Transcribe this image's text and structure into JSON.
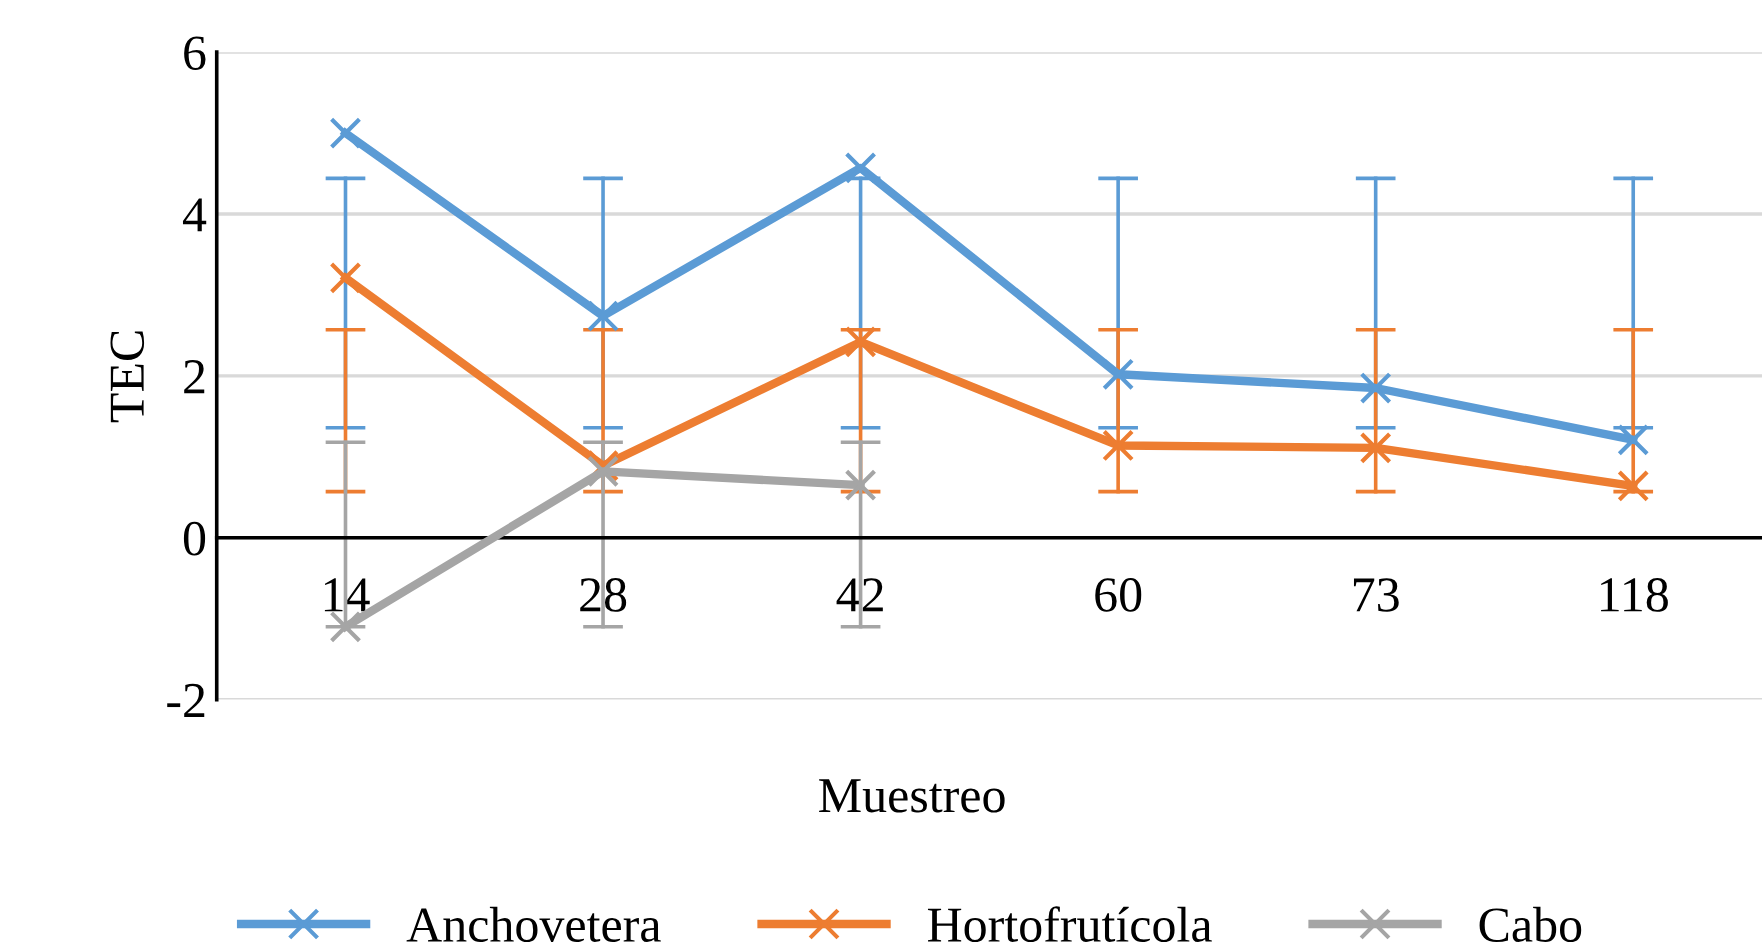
{
  "chart_data": {
    "type": "line",
    "xlabel": "Muestreo",
    "ylabel": "TEC",
    "categories": [
      "14",
      "28",
      "42",
      "60",
      "73",
      "118"
    ],
    "series": [
      {
        "name": "Anchovetera",
        "color": "#5b9bd5",
        "values": [
          5.0,
          2.74,
          4.57,
          2.02,
          1.85,
          1.21
        ],
        "errors": [
          [
            1.36,
            4.44
          ],
          [
            1.36,
            4.44
          ],
          [
            1.36,
            4.44
          ],
          [
            1.36,
            4.44
          ],
          [
            1.36,
            4.44
          ],
          [
            1.36,
            4.44
          ]
        ]
      },
      {
        "name": "Hortofrutícola",
        "color": "#ed7d31",
        "values": [
          3.21,
          0.89,
          2.42,
          1.14,
          1.11,
          0.64
        ],
        "errors": [
          [
            0.57,
            2.57
          ],
          [
            0.57,
            2.57
          ],
          [
            0.57,
            2.57
          ],
          [
            0.57,
            2.57
          ],
          [
            0.57,
            2.57
          ],
          [
            0.57,
            2.57
          ]
        ]
      },
      {
        "name": "Cabo",
        "color": "#a5a5a5",
        "values": [
          -1.1,
          0.82,
          0.65,
          null,
          null,
          null
        ],
        "errors": [
          [
            -1.1,
            1.18
          ],
          [
            -1.1,
            1.18
          ],
          [
            -1.1,
            1.18
          ],
          null,
          null,
          null
        ]
      }
    ],
    "ylim": [
      -2,
      6
    ],
    "yticks": [
      -2,
      0,
      2,
      4,
      6
    ],
    "grid": "y",
    "legend": "bottom",
    "marker": "cross",
    "line_style": "solid"
  }
}
